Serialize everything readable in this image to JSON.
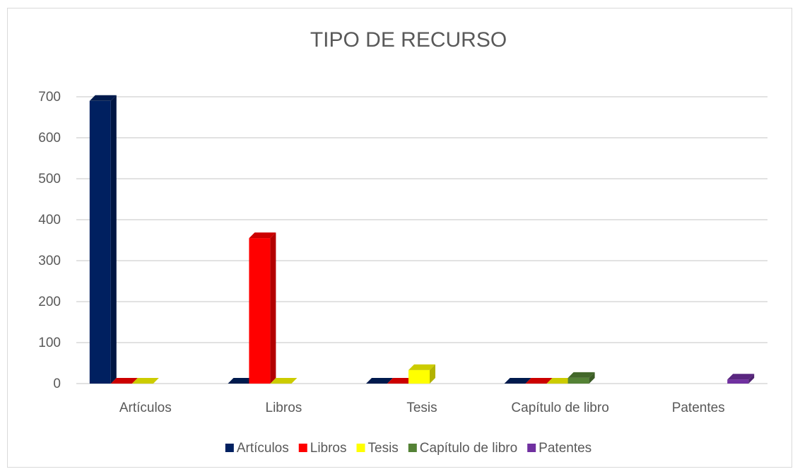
{
  "chart_data": {
    "type": "bar",
    "title": "TIPO DE RECURSO",
    "categories": [
      "Artículos",
      "Libros",
      "Tesis",
      "Capítulo de libro",
      "Patentes"
    ],
    "series": [
      {
        "name": "Artículos",
        "color": "#002060",
        "values": [
          690,
          0,
          0,
          0,
          null
        ]
      },
      {
        "name": "Libros",
        "color": "#ff0000",
        "values": [
          0,
          355,
          0,
          0,
          null
        ]
      },
      {
        "name": "Tesis",
        "color": "#ffff00",
        "values": [
          0,
          0,
          33,
          0,
          null
        ]
      },
      {
        "name": "Capítulo de libro",
        "color": "#548235",
        "values": [
          null,
          null,
          null,
          14,
          null
        ]
      },
      {
        "name": "Patentes",
        "color": "#7030a0",
        "values": [
          null,
          null,
          null,
          null,
          10
        ]
      }
    ],
    "ylim": [
      0,
      700
    ],
    "yticks": [
      0,
      100,
      200,
      300,
      400,
      500,
      600,
      700
    ],
    "grid": true,
    "legend": "bottom"
  }
}
